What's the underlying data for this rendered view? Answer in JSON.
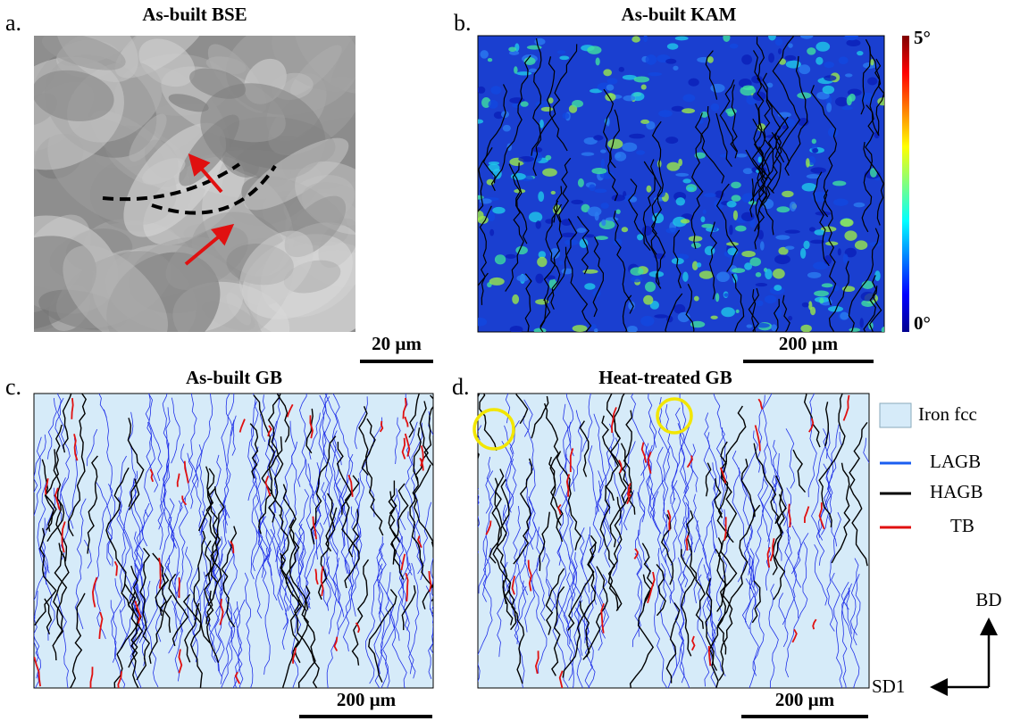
{
  "panels": [
    {
      "label": "a.",
      "title": "As-built BSE",
      "scale_bar": "20 µm"
    },
    {
      "label": "b.",
      "title": "As-built KAM",
      "scale_bar": "200 µm"
    },
    {
      "label": "c.",
      "title": "As-built GB",
      "scale_bar": "200 µm"
    },
    {
      "label": "d.",
      "title": "Heat-treated GB",
      "scale_bar": "200 µm"
    }
  ],
  "colorbar": {
    "max_label": "5°",
    "min_label": "0°"
  },
  "legend": {
    "phase": "Iron fcc",
    "items": [
      "LAGB",
      "HAGB",
      "TB"
    ]
  },
  "axes": {
    "vertical": "BD",
    "horizontal": "SD1"
  }
}
